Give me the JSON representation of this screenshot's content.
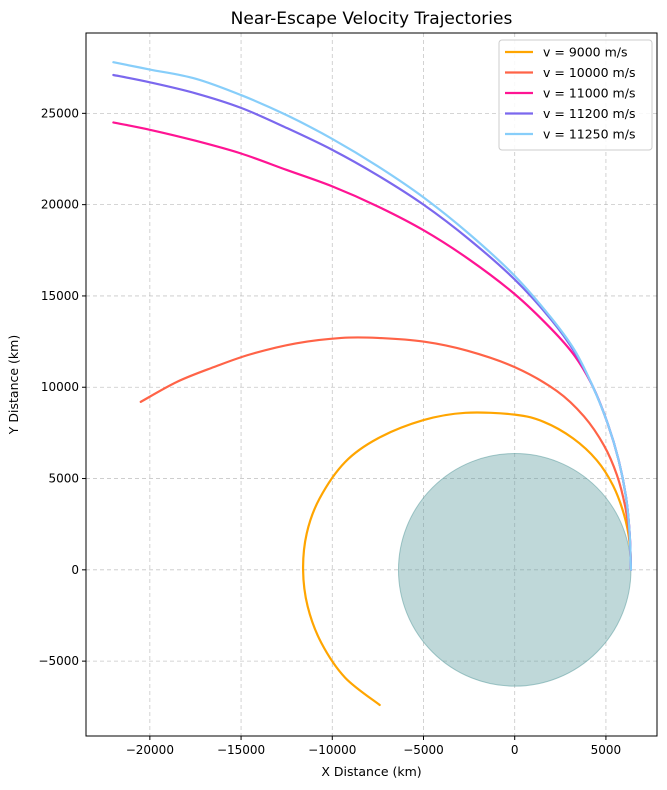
{
  "chart_data": {
    "type": "line",
    "title": "Near-Escape Velocity Trajectories",
    "xlabel": "X Distance (km)",
    "ylabel": "Y Distance (km)",
    "xlim": [
      -23500,
      7800
    ],
    "ylim": [
      -9100,
      29400
    ],
    "xticks": [
      -20000,
      -15000,
      -10000,
      -5000,
      0,
      5000
    ],
    "yticks": [
      -5000,
      0,
      5000,
      10000,
      15000,
      20000,
      25000
    ],
    "xtick_labels": [
      "−20000",
      "−15000",
      "−10000",
      "−5000",
      "0",
      "5000"
    ],
    "ytick_labels": [
      "−5000",
      "0",
      "5000",
      "10000",
      "15000",
      "20000",
      "25000"
    ],
    "grid": true,
    "legend_position": "top-right",
    "planet": {
      "center": [
        0,
        0
      ],
      "radius": 6371,
      "color": "#5f9ea0",
      "opacity": 0.4
    },
    "series": [
      {
        "name": "v = 9000 m/s",
        "color": "#ffa500",
        "points": [
          [
            6371,
            0
          ],
          [
            6300,
            1500
          ],
          [
            6000,
            3000
          ],
          [
            5400,
            4600
          ],
          [
            4500,
            6000
          ],
          [
            3200,
            7200
          ],
          [
            1600,
            8100
          ],
          [
            0,
            8500
          ],
          [
            -2700,
            8600
          ],
          [
            -5000,
            8200
          ],
          [
            -7500,
            7200
          ],
          [
            -9300,
            5900
          ],
          [
            -10700,
            3900
          ],
          [
            -11400,
            2000
          ],
          [
            -11600,
            0
          ],
          [
            -11350,
            -2000
          ],
          [
            -10600,
            -4000
          ],
          [
            -9300,
            -5900
          ],
          [
            -7400,
            -7400
          ]
        ]
      },
      {
        "name": "v = 10000 m/s",
        "color": "#ff6347",
        "points": [
          [
            6371,
            0
          ],
          [
            6300,
            1800
          ],
          [
            6050,
            3500
          ],
          [
            5600,
            5200
          ],
          [
            4900,
            6800
          ],
          [
            3800,
            8400
          ],
          [
            2300,
            9800
          ],
          [
            0,
            11100
          ],
          [
            -2600,
            12000
          ],
          [
            -5000,
            12500
          ],
          [
            -7500,
            12700
          ],
          [
            -9500,
            12700
          ],
          [
            -12000,
            12400
          ],
          [
            -14500,
            11800
          ],
          [
            -16500,
            11100
          ],
          [
            -18500,
            10300
          ],
          [
            -20500,
            9200
          ]
        ]
      },
      {
        "name": "v = 11000 m/s",
        "color": "#ff1493",
        "points": [
          [
            6371,
            0
          ],
          [
            6300,
            2000
          ],
          [
            6100,
            4000
          ],
          [
            5700,
            6000
          ],
          [
            5100,
            8000
          ],
          [
            4300,
            10000
          ],
          [
            3300,
            11700
          ],
          [
            2000,
            13200
          ],
          [
            0,
            15100
          ],
          [
            -2500,
            17000
          ],
          [
            -5000,
            18600
          ],
          [
            -7500,
            19900
          ],
          [
            -10000,
            21000
          ],
          [
            -12500,
            21900
          ],
          [
            -15000,
            22800
          ],
          [
            -17500,
            23500
          ],
          [
            -20000,
            24100
          ],
          [
            -22000,
            24500
          ]
        ]
      },
      {
        "name": "v = 11200 m/s",
        "color": "#7b68ee",
        "points": [
          [
            6371,
            0
          ],
          [
            6300,
            2000
          ],
          [
            6100,
            4000
          ],
          [
            5700,
            6000
          ],
          [
            5100,
            8000
          ],
          [
            4300,
            10000
          ],
          [
            3300,
            11900
          ],
          [
            2000,
            13700
          ],
          [
            0,
            15900
          ],
          [
            -2500,
            18100
          ],
          [
            -5000,
            20000
          ],
          [
            -7500,
            21600
          ],
          [
            -10000,
            23000
          ],
          [
            -12500,
            24200
          ],
          [
            -15000,
            25300
          ],
          [
            -17500,
            26100
          ],
          [
            -20000,
            26700
          ],
          [
            -22000,
            27100
          ]
        ]
      },
      {
        "name": "v = 11250 m/s",
        "color": "#87cefa",
        "points": [
          [
            6371,
            0
          ],
          [
            6300,
            2000
          ],
          [
            6100,
            4000
          ],
          [
            5700,
            6000
          ],
          [
            5100,
            8000
          ],
          [
            4300,
            10000
          ],
          [
            3300,
            12000
          ],
          [
            2000,
            13800
          ],
          [
            0,
            16100
          ],
          [
            -2500,
            18400
          ],
          [
            -5000,
            20400
          ],
          [
            -7500,
            22100
          ],
          [
            -10000,
            23600
          ],
          [
            -12500,
            24900
          ],
          [
            -15000,
            26000
          ],
          [
            -17500,
            26900
          ],
          [
            -20000,
            27400
          ],
          [
            -22000,
            27800
          ]
        ]
      }
    ]
  }
}
